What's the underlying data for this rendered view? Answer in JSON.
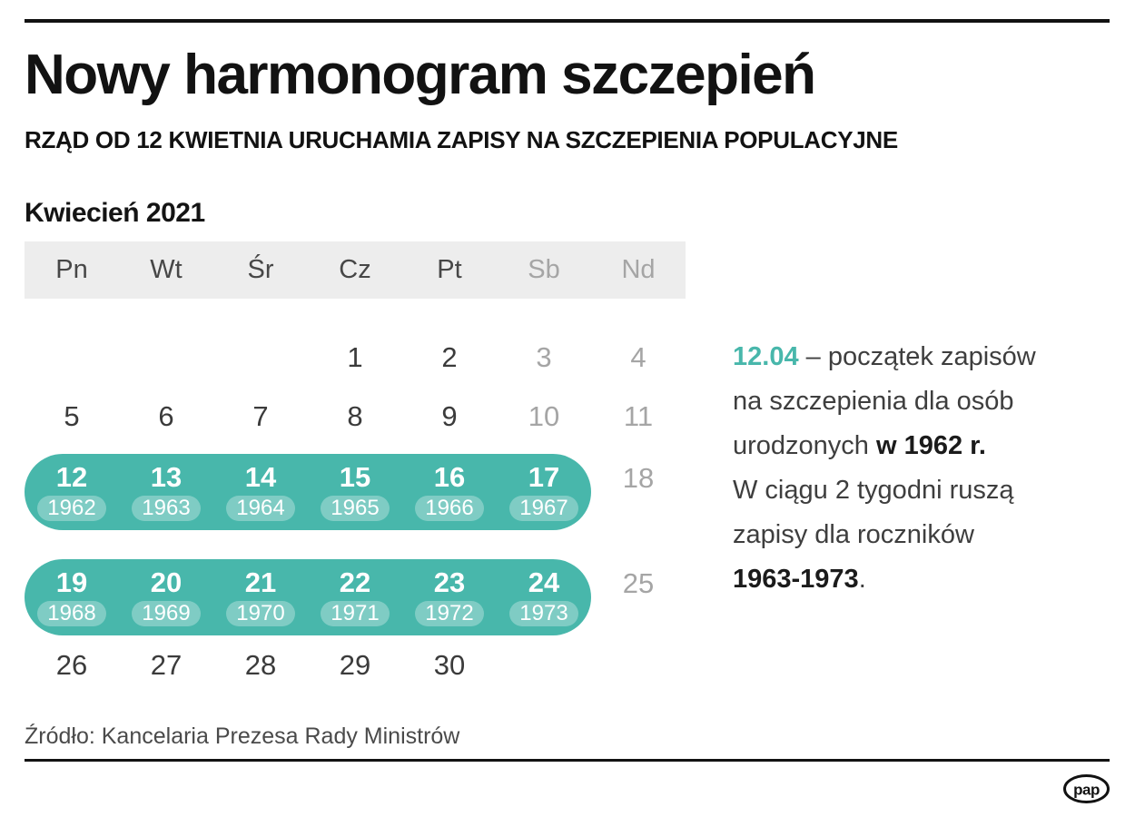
{
  "header": {
    "title": "Nowy harmonogram szczepień",
    "subtitle": "RZĄD OD 12 KWIETNIA URUCHAMIA ZAPISY NA SZCZEPIENIA POPULACYJNE"
  },
  "chart_data": {
    "type": "table",
    "title": "Kwiecień 2021",
    "notes": "Calendar of April 2021; highlighted vaccination sign-up dates mapped to birth years",
    "columns": [
      "Pn",
      "Wt",
      "Śr",
      "Cz",
      "Pt",
      "Sb",
      "Nd"
    ],
    "highlighted_ranges": [
      {
        "dates": [
          12,
          13,
          14,
          15,
          16,
          17
        ],
        "birth_years": [
          1962,
          1963,
          1964,
          1965,
          1966,
          1967
        ]
      },
      {
        "dates": [
          19,
          20,
          21,
          22,
          23,
          24
        ],
        "birth_years": [
          1968,
          1969,
          1970,
          1971,
          1972,
          1973
        ]
      }
    ]
  },
  "calendar": {
    "month_label": "Kwiecień 2021",
    "weekday_headers": [
      "Pn",
      "Wt",
      "Śr",
      "Cz",
      "Pt",
      "Sb",
      "Nd"
    ],
    "rows": [
      {
        "type": "plain",
        "days": [
          "",
          "",
          "",
          "1",
          "2",
          "3",
          "4"
        ]
      },
      {
        "type": "plain",
        "days": [
          "5",
          "6",
          "7",
          "8",
          "9",
          "10",
          "11"
        ]
      },
      {
        "type": "highlight",
        "cells": [
          {
            "day": "12",
            "year": "1962"
          },
          {
            "day": "13",
            "year": "1963"
          },
          {
            "day": "14",
            "year": "1964"
          },
          {
            "day": "15",
            "year": "1965"
          },
          {
            "day": "16",
            "year": "1966"
          },
          {
            "day": "17",
            "year": "1967"
          }
        ],
        "outside_day": "18"
      },
      {
        "type": "highlight",
        "cells": [
          {
            "day": "19",
            "year": "1968"
          },
          {
            "day": "20",
            "year": "1969"
          },
          {
            "day": "21",
            "year": "1970"
          },
          {
            "day": "22",
            "year": "1971"
          },
          {
            "day": "23",
            "year": "1972"
          },
          {
            "day": "24",
            "year": "1973"
          }
        ],
        "outside_day": "25"
      },
      {
        "type": "plain",
        "days": [
          "26",
          "27",
          "28",
          "29",
          "30",
          "",
          ""
        ]
      }
    ]
  },
  "annotation": {
    "lines": [
      [
        {
          "text": "12.04",
          "style": "accent"
        },
        {
          "text": " – początek zapisów"
        }
      ],
      [
        {
          "text": "na szczepienia dla osób"
        }
      ],
      [
        {
          "text": "urodzonych "
        },
        {
          "text": "w 1962 r.",
          "style": "bold"
        }
      ],
      [
        {
          "text": "W ciągu 2 tygodni ruszą"
        }
      ],
      [
        {
          "text": "zapisy dla roczników"
        }
      ],
      [
        {
          "text": "1963-1973",
          "style": "bold"
        },
        {
          "text": "."
        }
      ]
    ]
  },
  "footer": {
    "source": "Źródło: Kancelaria Prezesa Rady Ministrów",
    "logo_text": "pap"
  },
  "colors": {
    "accent_teal": "#48b7ab",
    "year_pill_bg": "rgba(255,255,255,0.30)",
    "weekend_gray": "#a5a5a5",
    "weekday_dark": "#3b3b3b",
    "ink": "#121212"
  }
}
